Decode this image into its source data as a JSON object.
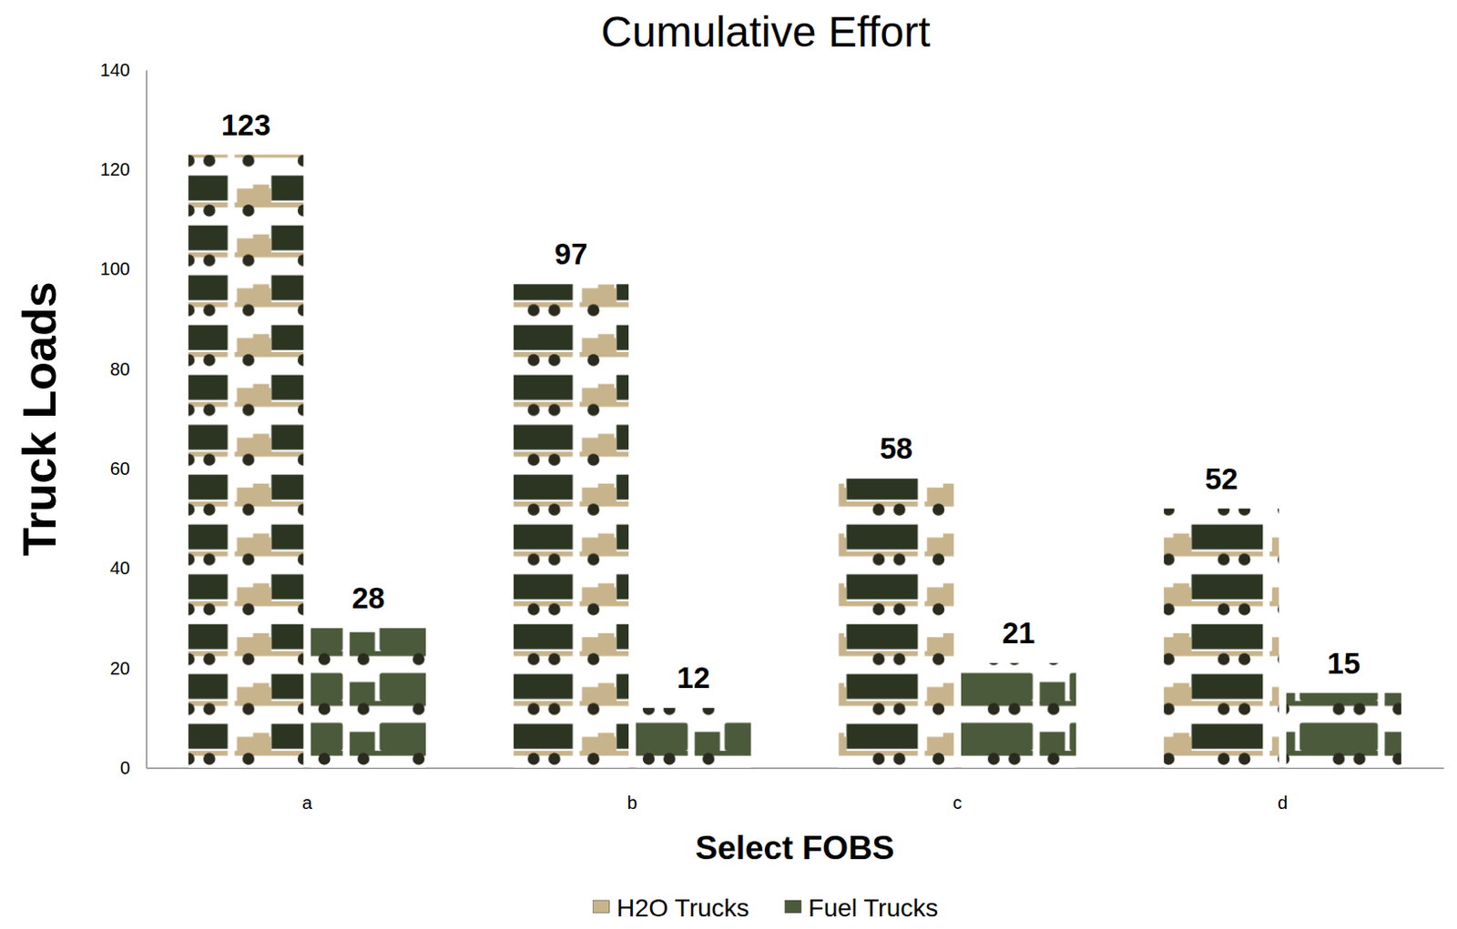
{
  "chart_data": {
    "type": "bar",
    "title": "Cumulative Effort",
    "x_label": "Select FOBS",
    "y_label": "Truck Loads",
    "categories": [
      "a",
      "b",
      "c",
      "d"
    ],
    "series": [
      {
        "name": "H2O Trucks",
        "color": "#c8b48c",
        "values": [
          123,
          97,
          58,
          52
        ]
      },
      {
        "name": "Fuel Trucks",
        "color": "#4b5a3a",
        "values": [
          28,
          12,
          21,
          15
        ]
      }
    ],
    "ylim": [
      0,
      140
    ],
    "yticks": [
      0,
      20,
      40,
      60,
      80,
      100,
      120,
      140
    ],
    "grid": false,
    "data_labels": true,
    "legend": "bottom"
  }
}
